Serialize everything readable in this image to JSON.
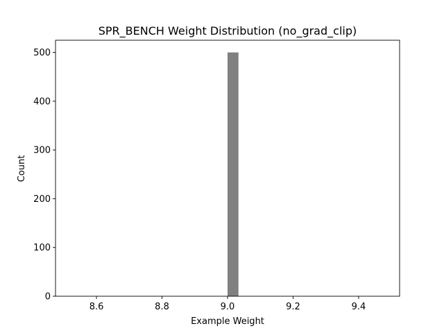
{
  "chart_data": {
    "type": "bar",
    "title": "SPR_BENCH Weight Distribution (no_grad_clip)",
    "xlabel": "Example Weight",
    "ylabel": "Count",
    "xlim": [
      8.475,
      9.525
    ],
    "ylim": [
      0,
      525
    ],
    "xticks": [
      8.6,
      8.8,
      9.0,
      9.2,
      9.4
    ],
    "xtick_labels": [
      "8.6",
      "8.8",
      "9.0",
      "9.2",
      "9.4"
    ],
    "yticks": [
      0,
      100,
      200,
      300,
      400,
      500
    ],
    "ytick_labels": [
      "0",
      "100",
      "200",
      "300",
      "400",
      "500"
    ],
    "bins": [
      {
        "start": 9.0,
        "end": 9.0333,
        "count": 500
      }
    ],
    "bar_color": "#808080",
    "grid": false,
    "legend": "none"
  }
}
